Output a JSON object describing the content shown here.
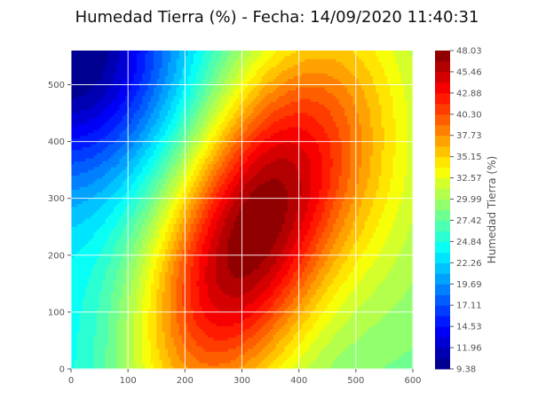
{
  "chart_data": {
    "type": "heatmap",
    "title": "Humedad Tierra (%) - Fecha: 14/09/2020 11:40:31",
    "xlabel": "",
    "ylabel": "",
    "xlim": [
      0,
      600
    ],
    "ylim": [
      0,
      560
    ],
    "xticks": [
      "0",
      "100",
      "200",
      "300",
      "400",
      "500",
      "600"
    ],
    "yticks": [
      "0",
      "100",
      "200",
      "300",
      "400",
      "500"
    ],
    "grid": true,
    "colormap": "jet",
    "colorbar": {
      "label": "Humedad Tierra (%)",
      "min": 9.38,
      "max": 48.03,
      "levels": 30,
      "ticks": [
        "9.38",
        "11.96",
        "14.53",
        "17.11",
        "19.69",
        "22.26",
        "24.84",
        "27.42",
        "29.99",
        "32.57",
        "35.15",
        "37.73",
        "40.30",
        "42.88",
        "45.46",
        "48.03"
      ]
    },
    "field": {
      "max_value": 48.03,
      "max_location": [
        320,
        245
      ],
      "min_value": 9.38,
      "min_location": [
        0,
        560
      ]
    }
  }
}
